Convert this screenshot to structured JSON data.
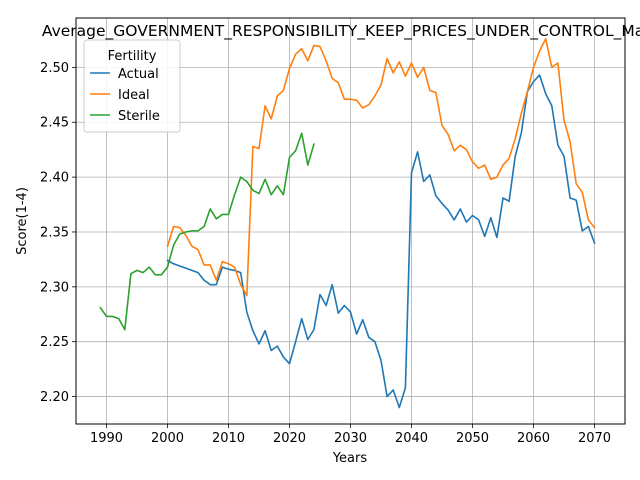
{
  "chart_data": {
    "type": "line",
    "title": "Average_GOVERNMENT_RESPONSIBILITY_KEEP_PRICES_UNDER_CONTROL_Male",
    "xlabel": "Years",
    "ylabel": "Score(1-4)",
    "xlim": [
      1985,
      2075
    ],
    "ylim": [
      2.175,
      2.545
    ],
    "xticks": [
      1990,
      2000,
      2010,
      2020,
      2030,
      2040,
      2050,
      2060,
      2070
    ],
    "yticks": [
      2.2,
      2.25,
      2.3,
      2.35,
      2.4,
      2.45,
      2.5
    ],
    "grid": true,
    "legend": {
      "title": "Fertility",
      "position": "top-left"
    },
    "series": [
      {
        "name": "Actual",
        "color": "#1f77b4",
        "x": [
          2000,
          2001,
          2002,
          2003,
          2004,
          2005,
          2006,
          2007,
          2008,
          2009,
          2010,
          2011,
          2012,
          2013,
          2014,
          2015,
          2016,
          2017,
          2018,
          2019,
          2020,
          2021,
          2022,
          2023,
          2024,
          2025,
          2026,
          2027,
          2028,
          2029,
          2030,
          2031,
          2032,
          2033,
          2034,
          2035,
          2036,
          2037,
          2038,
          2039,
          2040,
          2041,
          2042,
          2043,
          2044,
          2045,
          2046,
          2047,
          2048,
          2049,
          2050,
          2051,
          2052,
          2053,
          2054,
          2055,
          2056,
          2057,
          2058,
          2059,
          2060,
          2061,
          2062,
          2063,
          2064,
          2065,
          2066,
          2067,
          2068,
          2069,
          2070
        ],
        "values": [
          2.324,
          2.321,
          2.319,
          2.317,
          2.315,
          2.313,
          2.306,
          2.302,
          2.302,
          2.318,
          2.316,
          2.315,
          2.313,
          2.277,
          2.26,
          2.248,
          2.26,
          2.242,
          2.246,
          2.236,
          2.23,
          2.25,
          2.271,
          2.252,
          2.261,
          2.293,
          2.283,
          2.302,
          2.276,
          2.283,
          2.277,
          2.257,
          2.27,
          2.254,
          2.25,
          2.233,
          2.2,
          2.206,
          2.19,
          2.208,
          2.404,
          2.423,
          2.396,
          2.402,
          2.383,
          2.376,
          2.37,
          2.361,
          2.371,
          2.359,
          2.365,
          2.361,
          2.346,
          2.363,
          2.345,
          2.381,
          2.378,
          2.419,
          2.44,
          2.478,
          2.487,
          2.493,
          2.476,
          2.465,
          2.429,
          2.419,
          2.381,
          2.379,
          2.351,
          2.355,
          2.34
        ]
      },
      {
        "name": "Ideal",
        "color": "#ff7f0e",
        "x": [
          2000,
          2001,
          2002,
          2003,
          2004,
          2005,
          2006,
          2007,
          2008,
          2009,
          2010,
          2011,
          2012,
          2013,
          2014,
          2015,
          2016,
          2017,
          2018,
          2019,
          2020,
          2021,
          2022,
          2023,
          2024,
          2025,
          2026,
          2027,
          2028,
          2029,
          2030,
          2031,
          2032,
          2033,
          2034,
          2035,
          2036,
          2037,
          2038,
          2039,
          2040,
          2041,
          2042,
          2043,
          2044,
          2045,
          2046,
          2047,
          2048,
          2049,
          2050,
          2051,
          2052,
          2053,
          2054,
          2055,
          2056,
          2057,
          2058,
          2059,
          2060,
          2061,
          2062,
          2063,
          2064,
          2065,
          2066,
          2067,
          2068,
          2069,
          2070
        ],
        "values": [
          2.337,
          2.355,
          2.354,
          2.347,
          2.337,
          2.334,
          2.32,
          2.32,
          2.306,
          2.323,
          2.321,
          2.318,
          2.302,
          2.292,
          2.428,
          2.426,
          2.465,
          2.453,
          2.474,
          2.479,
          2.499,
          2.512,
          2.517,
          2.506,
          2.52,
          2.519,
          2.506,
          2.49,
          2.486,
          2.471,
          2.471,
          2.47,
          2.463,
          2.466,
          2.474,
          2.484,
          2.508,
          2.495,
          2.505,
          2.492,
          2.504,
          2.491,
          2.5,
          2.479,
          2.477,
          2.447,
          2.439,
          2.424,
          2.429,
          2.425,
          2.414,
          2.408,
          2.411,
          2.398,
          2.4,
          2.411,
          2.417,
          2.435,
          2.458,
          2.478,
          2.5,
          2.515,
          2.526,
          2.5,
          2.504,
          2.452,
          2.432,
          2.394,
          2.386,
          2.361,
          2.354
        ]
      },
      {
        "name": "Sterile",
        "color": "#2ca02c",
        "x": [
          1989,
          1990,
          1991,
          1992,
          1993,
          1994,
          1995,
          1996,
          1997,
          1998,
          1999,
          2000,
          2001,
          2002,
          2003,
          2004,
          2005,
          2006,
          2007,
          2008,
          2009,
          2010,
          2011,
          2012,
          2013,
          2014,
          2015,
          2016,
          2017,
          2018,
          2019,
          2020,
          2021,
          2022,
          2023,
          2024
        ],
        "values": [
          2.281,
          2.273,
          2.273,
          2.271,
          2.261,
          2.312,
          2.315,
          2.313,
          2.318,
          2.311,
          2.311,
          2.318,
          2.338,
          2.348,
          2.35,
          2.351,
          2.351,
          2.355,
          2.371,
          2.362,
          2.366,
          2.366,
          2.384,
          2.4,
          2.396,
          2.388,
          2.385,
          2.398,
          2.384,
          2.392,
          2.384,
          2.418,
          2.424,
          2.44,
          2.411,
          2.43
        ]
      }
    ]
  }
}
